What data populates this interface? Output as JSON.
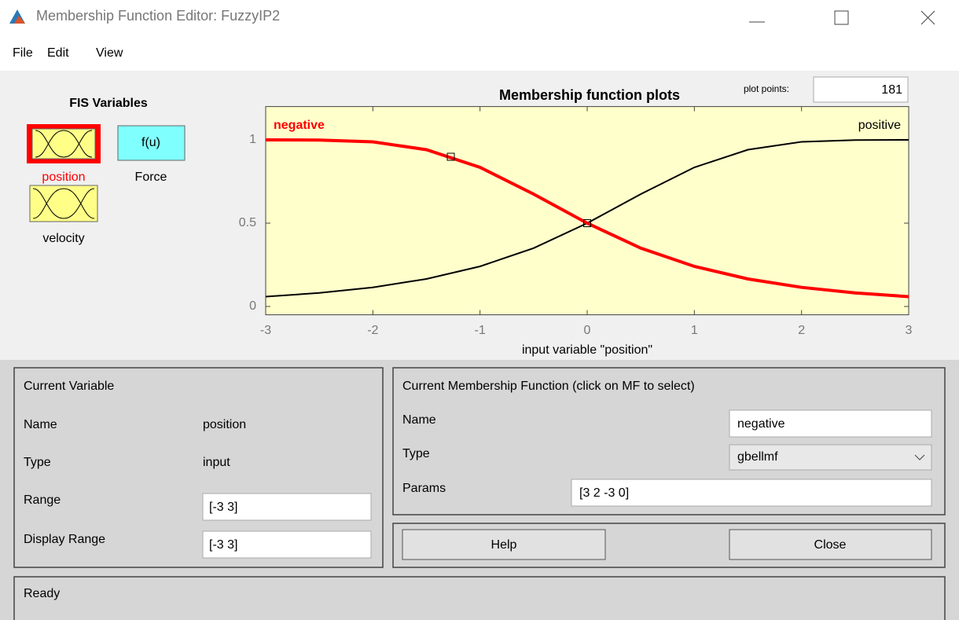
{
  "window": {
    "title": "Membership Function Editor: FuzzyIP2"
  },
  "menu": [
    "File",
    "Edit",
    "View"
  ],
  "fis_variables": {
    "title": "FIS Variables",
    "inputs": [
      "position",
      "velocity"
    ],
    "output": "Force",
    "output_icon": "f(u)"
  },
  "plot": {
    "title": "Membership function plots",
    "plot_points_label": "plot points:",
    "plot_points": 181,
    "xlabel": "input variable \"position\"",
    "curves": [
      "negative",
      "positive"
    ],
    "xlim": [
      -3,
      3
    ],
    "ylim": [
      -0.05,
      1.2
    ],
    "xticks": [
      -3,
      -2,
      -1,
      0,
      1,
      2,
      3
    ],
    "yticks": [
      0,
      0.5,
      1
    ]
  },
  "current_variable": {
    "title": "Current Variable",
    "name_label": "Name",
    "name": "position",
    "type_label": "Type",
    "type": "input",
    "range_label": "Range",
    "range": "[-3 3]",
    "display_range_label": "Display Range",
    "display_range": "[-3 3]"
  },
  "current_mf": {
    "title": "Current Membership Function (click on MF to select)",
    "name_label": "Name",
    "name": "negative",
    "type_label": "Type",
    "type": "gbellmf",
    "params_label": "Params",
    "params": "[3 2 -3 0]"
  },
  "buttons": [
    "Help",
    "Close"
  ],
  "status": "Ready"
}
